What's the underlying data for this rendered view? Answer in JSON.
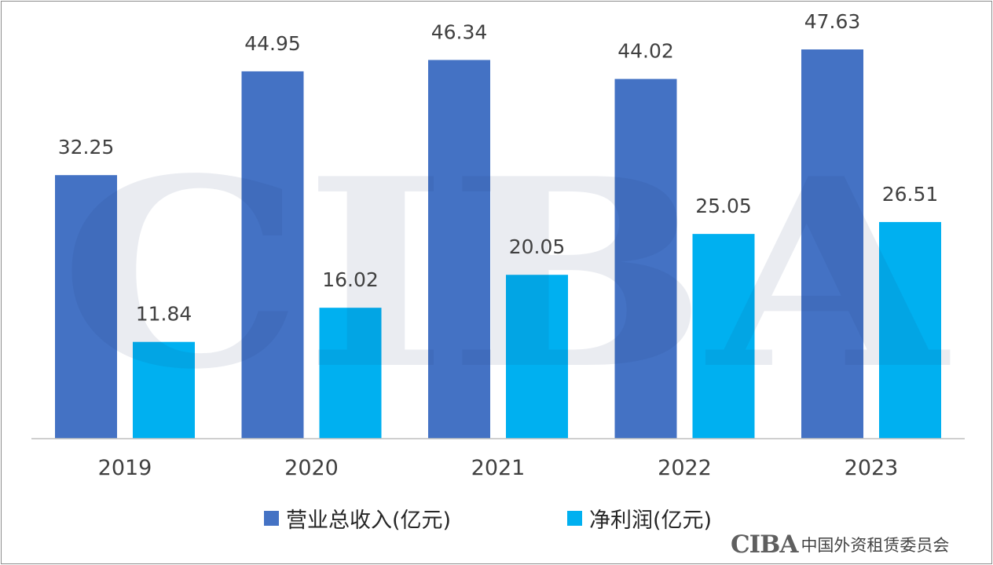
{
  "chart_data": {
    "type": "bar",
    "categories": [
      "2019",
      "2020",
      "2021",
      "2022",
      "2023"
    ],
    "series": [
      {
        "name": "营业总收入(亿元)",
        "values": [
          32.25,
          44.95,
          46.34,
          44.02,
          47.63
        ],
        "color": "#4472C4"
      },
      {
        "name": "净利润(亿元)",
        "values": [
          11.84,
          16.02,
          20.05,
          25.05,
          26.51
        ],
        "color": "#00B0F0"
      }
    ],
    "ylim": [
      0,
      50
    ],
    "grid": false,
    "legend_position": "bottom"
  },
  "watermark": {
    "text": "CIBA"
  },
  "logo": {
    "mark": "CIBA",
    "org": "中国外资租赁委员会"
  }
}
